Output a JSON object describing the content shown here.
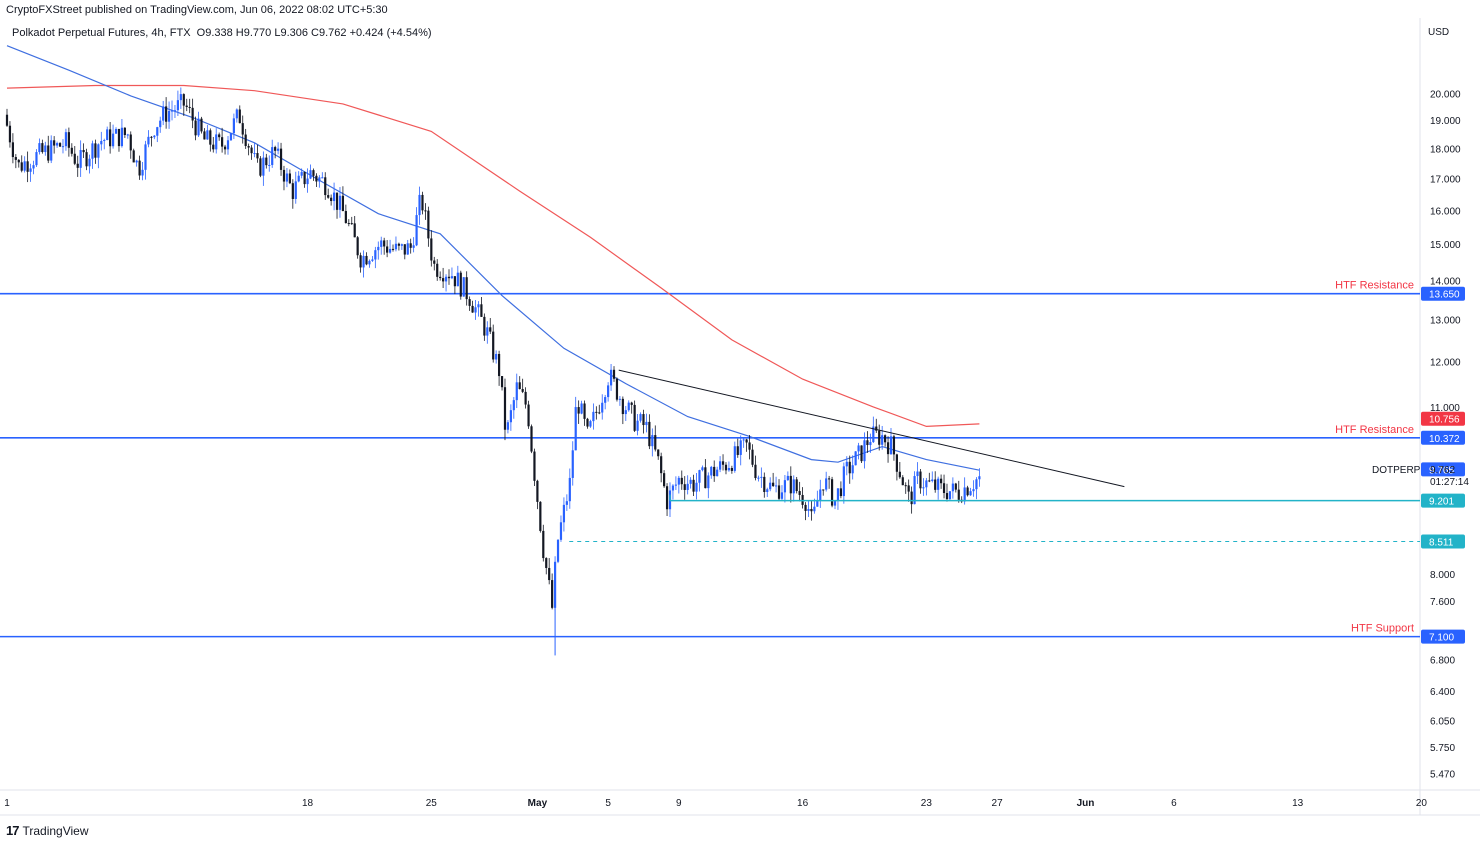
{
  "header": {
    "published": "CryptoFXStreet published on TradingView.com, Jun 06, 2022 08:02 UTC+5:30"
  },
  "symbol": {
    "name": "Polkadot Perpetual Futures, 4h, FTX",
    "ohlc": "O9.338  H9.770  L9.306  C9.762  +0.424 (+4.54%)"
  },
  "currency": "USD",
  "footer": {
    "brand": "TradingView",
    "logo": "17"
  },
  "colors": {
    "up": "#2962ff",
    "down": "#131722",
    "ma_fast": "#3f6fe0",
    "ma_slow": "#f05858",
    "level": "#2962ff",
    "support_cyan": "#22b3c8",
    "label_red": "#f23645",
    "trendline": "#131722"
  },
  "chart_data": {
    "type": "candlestick",
    "y_scale": "log",
    "ylim": [
      5.3,
      23.0
    ],
    "price_ticks": [
      20.0,
      19.0,
      18.0,
      17.0,
      16.0,
      15.0,
      14.0,
      13.0,
      12.0,
      11.0,
      8.0,
      7.6,
      6.8,
      6.4,
      6.05,
      5.75,
      5.47
    ],
    "price_tick_labels": [
      "20.000",
      "19.000",
      "18.000",
      "17.000",
      "16.000",
      "15.000",
      "14.000",
      "13.000",
      "12.000",
      "11.000",
      "8.000",
      "7.600",
      "6.800",
      "6.400",
      "6.050",
      "5.750",
      "5.470"
    ],
    "x_ticks": [
      {
        "day": 0,
        "label": "1"
      },
      {
        "day": 17,
        "label": "18"
      },
      {
        "day": 24,
        "label": "25"
      },
      {
        "day": 30,
        "label": "May"
      },
      {
        "day": 34,
        "label": "5"
      },
      {
        "day": 38,
        "label": "9"
      },
      {
        "day": 45,
        "label": "16"
      },
      {
        "day": 52,
        "label": "23"
      },
      {
        "day": 56,
        "label": "27"
      },
      {
        "day": 61,
        "label": "Jun"
      },
      {
        "day": 66,
        "label": "6"
      },
      {
        "day": 73,
        "label": "13"
      },
      {
        "day": 80,
        "label": "20"
      },
      {
        "day": 87,
        "label": "27"
      }
    ],
    "price_path": [
      [
        0,
        19.2
      ],
      [
        0.8,
        17.4
      ],
      [
        2,
        17.8
      ],
      [
        3.5,
        18.2
      ],
      [
        4.2,
        17.5
      ],
      [
        5.5,
        18.3
      ],
      [
        7,
        18.5
      ],
      [
        7.6,
        17.3
      ],
      [
        8.5,
        18.8
      ],
      [
        9.2,
        19.3
      ],
      [
        10.2,
        19.6
      ],
      [
        11.3,
        18.3
      ],
      [
        12.3,
        18.1
      ],
      [
        13.3,
        19.2
      ],
      [
        14.3,
        17.3
      ],
      [
        15.3,
        17.9
      ],
      [
        16.3,
        16.6
      ],
      [
        17.3,
        17.2
      ],
      [
        18.3,
        16.8
      ],
      [
        19.3,
        15.8
      ],
      [
        20.2,
        14.6
      ],
      [
        21.3,
        15.0
      ],
      [
        22.3,
        14.8
      ],
      [
        23.0,
        14.9
      ],
      [
        23.6,
        16.4
      ],
      [
        24.3,
        14.4
      ],
      [
        25.3,
        14.2
      ],
      [
        26.3,
        13.6
      ],
      [
        27.3,
        12.7
      ],
      [
        28.0,
        11.8
      ],
      [
        28.4,
        10.4
      ],
      [
        29.0,
        11.4
      ],
      [
        29.6,
        11.0
      ],
      [
        30.0,
        9.7
      ],
      [
        30.5,
        8.4
      ],
      [
        31.0,
        7.5
      ],
      [
        31.3,
        8.5
      ],
      [
        32.0,
        9.5
      ],
      [
        32.4,
        11.2
      ],
      [
        33.0,
        10.4
      ],
      [
        33.5,
        10.9
      ],
      [
        34.2,
        11.7
      ],
      [
        35.0,
        11.1
      ],
      [
        35.7,
        10.7
      ],
      [
        36.3,
        10.6
      ],
      [
        37.0,
        9.9
      ],
      [
        37.5,
        9.2
      ],
      [
        38.2,
        9.6
      ],
      [
        39.0,
        9.5
      ],
      [
        40.0,
        9.7
      ],
      [
        41.0,
        9.9
      ],
      [
        42.0,
        10.2
      ],
      [
        42.6,
        9.7
      ],
      [
        43.5,
        9.4
      ],
      [
        44.5,
        9.5
      ],
      [
        45.4,
        9.2
      ],
      [
        45.7,
        8.8
      ],
      [
        46.3,
        9.6
      ],
      [
        47.0,
        9.2
      ],
      [
        47.6,
        9.7
      ],
      [
        48.5,
        10.1
      ],
      [
        49.0,
        10.4
      ],
      [
        49.7,
        10.4
      ],
      [
        50.2,
        10.2
      ],
      [
        50.7,
        9.7
      ],
      [
        51.2,
        9.2
      ],
      [
        51.7,
        9.6
      ],
      [
        52.2,
        9.5
      ],
      [
        53.0,
        9.4
      ],
      [
        54.0,
        9.35
      ],
      [
        55.1,
        9.6
      ]
    ],
    "ma_fast": [
      [
        0,
        21.9
      ],
      [
        3.5,
        20.9
      ],
      [
        7,
        19.9
      ],
      [
        10.5,
        19.1
      ],
      [
        14,
        18.2
      ],
      [
        17.5,
        17.0
      ],
      [
        21,
        15.9
      ],
      [
        24.5,
        15.3
      ],
      [
        28,
        13.6
      ],
      [
        31.5,
        12.3
      ],
      [
        35,
        11.5
      ],
      [
        38.5,
        10.8
      ],
      [
        42,
        10.4
      ],
      [
        45.5,
        9.95
      ],
      [
        47.0,
        9.9
      ],
      [
        49.5,
        10.2
      ],
      [
        52.0,
        9.95
      ],
      [
        55.0,
        9.75
      ]
    ],
    "ma_slow": [
      [
        0,
        20.2
      ],
      [
        5,
        20.3
      ],
      [
        10,
        20.3
      ],
      [
        14,
        20.1
      ],
      [
        19,
        19.6
      ],
      [
        24,
        18.6
      ],
      [
        29,
        16.6
      ],
      [
        33,
        15.2
      ],
      [
        37,
        13.8
      ],
      [
        41,
        12.5
      ],
      [
        45,
        11.6
      ],
      [
        49,
        11.0
      ],
      [
        52,
        10.6
      ],
      [
        55,
        10.65
      ]
    ],
    "trendline": [
      [
        34.6,
        11.8
      ],
      [
        63.2,
        9.45
      ]
    ],
    "range_line": [
      [
        37.5,
        9.201
      ],
      [
        79,
        9.201
      ]
    ],
    "dashed_line": [
      [
        31.8,
        8.511
      ],
      [
        79,
        8.511
      ]
    ],
    "levels": [
      {
        "name": "HTF Resistance",
        "value": 13.65,
        "label": "13.650"
      },
      {
        "name": "HTF Resistance",
        "value": 10.372,
        "label": "10.372"
      },
      {
        "name": "HTF Support",
        "value": 7.1,
        "label": "7.100"
      }
    ],
    "tags": [
      {
        "label": "10.756",
        "value": 10.756,
        "color": "#f23645"
      },
      {
        "label": "9.765",
        "value": 9.765,
        "color": "#2962ff"
      },
      {
        "label": "9.201",
        "value": 9.201,
        "color": "#22b3c8"
      },
      {
        "label": "8.511",
        "value": 8.511,
        "color": "#22b3c8"
      }
    ],
    "last_price": {
      "symbol": "DOTPERP",
      "price": "9.762",
      "countdown": "01:27:14"
    }
  }
}
